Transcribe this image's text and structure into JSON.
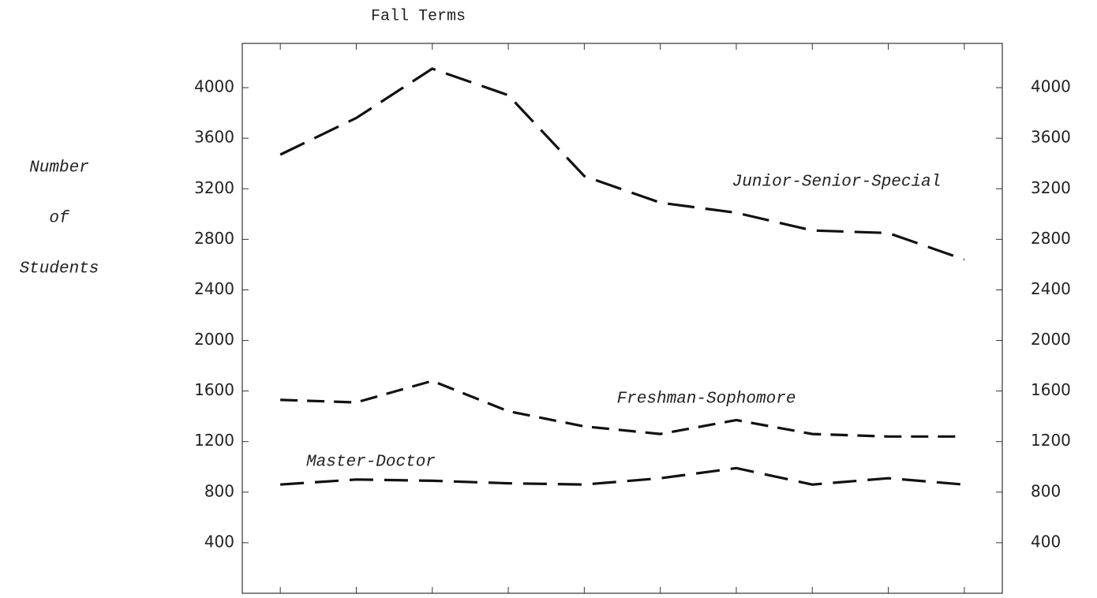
{
  "chart_data": {
    "type": "line",
    "title": "Fall Terms",
    "ylabel": [
      "Number",
      "of",
      "Students"
    ],
    "categories": [
      null,
      null,
      null,
      null,
      null,
      null,
      null,
      null,
      null,
      null
    ],
    "series": [
      {
        "name": "Junior-Senior-Special",
        "color": "#111111",
        "values": [
          3470,
          3760,
          4150,
          3940,
          3300,
          3090,
          3010,
          2870,
          2850,
          2640
        ]
      },
      {
        "name": "Freshman-Sophomore",
        "color": "#111111",
        "values": [
          1530,
          1510,
          1680,
          1440,
          1320,
          1260,
          1370,
          1260,
          1240,
          1240
        ]
      },
      {
        "name": "Master-Doctor",
        "color": "#111111",
        "values": [
          860,
          900,
          890,
          870,
          860,
          910,
          990,
          860,
          910,
          860
        ]
      }
    ],
    "ylim": [
      0,
      4350
    ],
    "yticks": [
      400,
      800,
      1200,
      1600,
      2000,
      2400,
      2800,
      3200,
      3600,
      4000
    ],
    "y2lim": [
      0,
      4350
    ],
    "y2ticks": [
      400,
      800,
      1200,
      1600,
      2000,
      2400,
      2800,
      3200,
      3600,
      4000
    ],
    "grid": false
  }
}
